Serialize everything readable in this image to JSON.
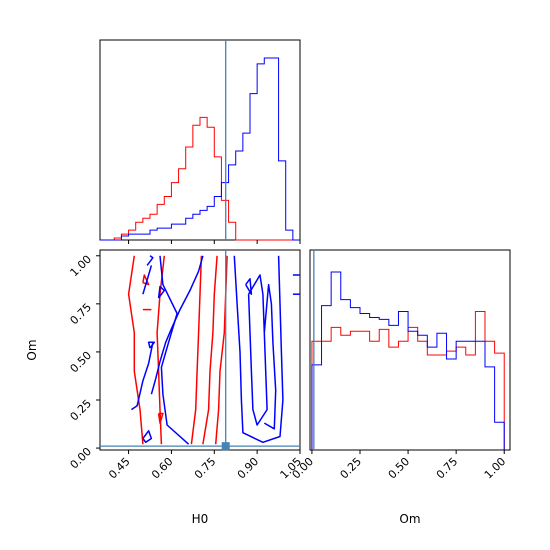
{
  "chart_data": {
    "type": "corner",
    "truth": {
      "H0": 0.79,
      "Om": 0.01
    },
    "series_colors": {
      "red": "#ff0000",
      "blue": "#0000ff",
      "truth": "#4682b4"
    },
    "axes": {
      "H0": {
        "label": "H0",
        "range": [
          0.35,
          1.05
        ],
        "ticks": [
          "0.45",
          "0.60",
          "0.75",
          "0.90",
          "1.05"
        ]
      },
      "Om": {
        "label": "Om",
        "range": [
          -0.01,
          1.03
        ],
        "ticks": [
          "0.00",
          "0.25",
          "0.50",
          "0.75",
          "1.00"
        ]
      }
    },
    "hist_H0": {
      "bins": [
        0.35,
        0.375,
        0.4,
        0.425,
        0.45,
        0.475,
        0.5,
        0.525,
        0.55,
        0.575,
        0.6,
        0.625,
        0.65,
        0.675,
        0.7,
        0.725,
        0.75,
        0.775,
        0.8,
        0.825,
        0.85,
        0.875,
        0.9,
        0.925,
        0.95,
        0.975,
        1.0,
        1.025,
        1.05
      ],
      "red": [
        0,
        0,
        0.01,
        0.03,
        0.05,
        0.09,
        0.11,
        0.13,
        0.18,
        0.22,
        0.29,
        0.36,
        0.47,
        0.58,
        0.62,
        0.57,
        0.42,
        0.2,
        0.09,
        0,
        0,
        0,
        0,
        0,
        0,
        0,
        0,
        0
      ],
      "blue": [
        0,
        0,
        0,
        0.02,
        0.03,
        0.03,
        0.03,
        0.05,
        0.06,
        0.06,
        0.08,
        0.08,
        0.11,
        0.13,
        0.15,
        0.17,
        0.22,
        0.29,
        0.38,
        0.45,
        0.54,
        0.74,
        0.89,
        0.92,
        0.92,
        0.4,
        0.05,
        0
      ]
    },
    "hist_Om": {
      "bins": [
        0.0,
        0.05,
        0.1,
        0.15,
        0.2,
        0.25,
        0.3,
        0.35,
        0.4,
        0.45,
        0.5,
        0.55,
        0.6,
        0.65,
        0.7,
        0.75,
        0.8,
        0.85,
        0.9,
        0.95,
        1.0
      ],
      "red": [
        0.55,
        0.55,
        0.62,
        0.58,
        0.6,
        0.6,
        0.55,
        0.61,
        0.52,
        0.55,
        0.62,
        0.55,
        0.48,
        0.48,
        0.5,
        0.52,
        0.48,
        0.7,
        0.55,
        0.49
      ],
      "blue": [
        0.43,
        0.73,
        0.9,
        0.76,
        0.72,
        0.69,
        0.67,
        0.66,
        0.63,
        0.7,
        0.6,
        0.58,
        0.52,
        0.59,
        0.46,
        0.55,
        0.55,
        0.55,
        0.42,
        0.14
      ]
    },
    "contours": {
      "red": [
        [
          [
            0.5,
            0.02
          ],
          [
            0.49,
            0.2
          ],
          [
            0.47,
            0.4
          ],
          [
            0.47,
            0.6
          ],
          [
            0.45,
            0.8
          ],
          [
            0.47,
            1.0
          ]
        ],
        [
          [
            0.565,
            0.02
          ],
          [
            0.56,
            0.2
          ],
          [
            0.555,
            0.4
          ],
          [
            0.55,
            0.6
          ],
          [
            0.56,
            0.8
          ],
          [
            0.575,
            1.0
          ]
        ],
        [
          [
            0.67,
            0.02
          ],
          [
            0.685,
            0.2
          ],
          [
            0.69,
            0.4
          ],
          [
            0.695,
            0.6
          ],
          [
            0.7,
            0.8
          ],
          [
            0.705,
            1.0
          ]
        ],
        [
          [
            0.71,
            0.02
          ],
          [
            0.73,
            0.2
          ],
          [
            0.735,
            0.4
          ],
          [
            0.745,
            0.6
          ],
          [
            0.75,
            0.8
          ],
          [
            0.76,
            1.0
          ]
        ],
        [
          [
            0.755,
            0.02
          ],
          [
            0.765,
            0.2
          ],
          [
            0.77,
            0.4
          ],
          [
            0.785,
            0.6
          ],
          [
            0.79,
            0.8
          ],
          [
            0.795,
            1.0
          ]
        ],
        [
          [
            0.5,
            0.86
          ],
          [
            0.52,
            0.85
          ],
          [
            0.505,
            0.9
          ],
          [
            0.5,
            0.86
          ]
        ],
        [
          [
            0.555,
            0.18
          ],
          [
            0.56,
            0.13
          ],
          [
            0.57,
            0.18
          ],
          [
            0.555,
            0.18
          ]
        ],
        [
          [
            0.5,
            0.72
          ],
          [
            0.53,
            0.72
          ]
        ]
      ],
      "blue": [
        [
          [
            0.56,
            1.0
          ],
          [
            0.57,
            0.85
          ],
          [
            0.62,
            0.7
          ],
          [
            0.59,
            0.55
          ],
          [
            0.565,
            0.42
          ],
          [
            0.57,
            0.28
          ],
          [
            0.585,
            0.12
          ],
          [
            0.66,
            0.02
          ]
        ],
        [
          [
            0.53,
            0.28
          ],
          [
            0.545,
            0.36
          ],
          [
            0.56,
            0.45
          ],
          [
            0.58,
            0.55
          ],
          [
            0.6,
            0.62
          ],
          [
            0.63,
            0.72
          ],
          [
            0.665,
            0.82
          ],
          [
            0.695,
            0.92
          ],
          [
            0.71,
            1.0
          ]
        ],
        [
          [
            0.46,
            0.2
          ],
          [
            0.48,
            0.22
          ],
          [
            0.5,
            0.35
          ],
          [
            0.52,
            0.44
          ],
          [
            0.535,
            0.55
          ]
        ],
        [
          [
            0.5,
            0.8
          ],
          [
            0.52,
            0.9
          ],
          [
            0.53,
            0.95
          ]
        ],
        [
          [
            0.5,
            0.05
          ],
          [
            0.52,
            0.09
          ],
          [
            0.53,
            0.05
          ],
          [
            0.51,
            0.03
          ],
          [
            0.5,
            0.05
          ]
        ],
        [
          [
            0.525,
            0.52
          ],
          [
            0.54,
            0.55
          ],
          [
            0.52,
            0.55
          ],
          [
            0.525,
            0.52
          ]
        ],
        [
          [
            0.555,
            0.78
          ],
          [
            0.575,
            0.82
          ],
          [
            0.56,
            0.84
          ],
          [
            0.555,
            0.78
          ]
        ],
        [
          [
            0.515,
            0.95
          ],
          [
            0.535,
            0.99
          ],
          [
            0.525,
            1.0
          ]
        ],
        [
          [
            0.82,
            1.0
          ],
          [
            0.83,
            0.75
          ],
          [
            0.84,
            0.5
          ],
          [
            0.845,
            0.25
          ],
          [
            0.85,
            0.08
          ],
          [
            0.92,
            0.03
          ],
          [
            0.98,
            0.06
          ],
          [
            0.99,
            0.25
          ],
          [
            0.985,
            0.5
          ],
          [
            0.98,
            0.75
          ],
          [
            0.975,
            1.0
          ]
        ],
        [
          [
            0.87,
            0.8
          ],
          [
            0.875,
            0.6
          ],
          [
            0.88,
            0.4
          ],
          [
            0.885,
            0.2
          ],
          [
            0.9,
            0.12
          ],
          [
            0.935,
            0.2
          ],
          [
            0.93,
            0.4
          ],
          [
            0.925,
            0.6
          ],
          [
            0.92,
            0.8
          ],
          [
            0.91,
            0.9
          ],
          [
            0.87,
            0.8
          ]
        ],
        [
          [
            0.925,
            0.13
          ],
          [
            0.96,
            0.1
          ],
          [
            0.965,
            0.3
          ],
          [
            0.955,
            0.55
          ],
          [
            0.95,
            0.75
          ],
          [
            0.94,
            0.85
          ],
          [
            0.925,
            0.6
          ]
        ],
        [
          [
            0.86,
            0.85
          ],
          [
            0.88,
            0.8
          ],
          [
            0.875,
            0.88
          ],
          [
            0.86,
            0.85
          ]
        ],
        [
          [
            1.025,
            0.9
          ],
          [
            1.05,
            0.9
          ]
        ],
        [
          [
            1.025,
            0.8
          ],
          [
            1.05,
            0.8
          ]
        ]
      ]
    }
  }
}
